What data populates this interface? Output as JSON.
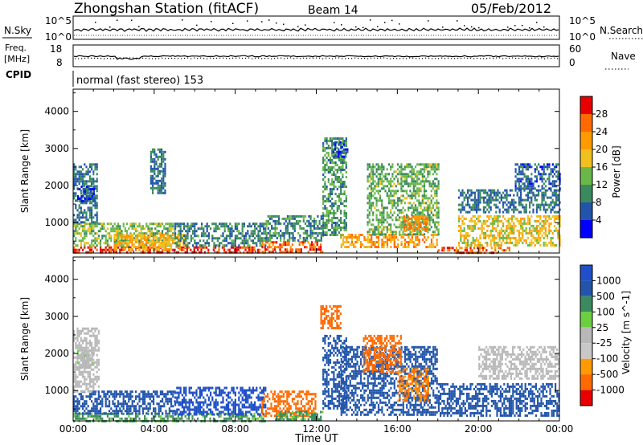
{
  "header": {
    "title": "Zhongshan Station (fitACF)",
    "beam": "Beam 14",
    "date": "05/Feb/2012"
  },
  "noise_panel": {
    "left_label": "N.Sky",
    "right_label": "N.Search",
    "left_ticks": [
      "10^5",
      "10^0"
    ],
    "right_ticks": [
      "10^5",
      "10^0"
    ]
  },
  "freq_panel": {
    "left_label_1": "Freq.",
    "left_label_2": "[MHz]",
    "right_label": "Nave",
    "left_ticks": [
      "18",
      "8"
    ],
    "right_ticks": [
      "60",
      "0"
    ]
  },
  "cpid": {
    "label": "CPID",
    "text": "normal (fast stereo) 153"
  },
  "x_axis": {
    "label": "Time UT",
    "ticks": [
      "00:00",
      "04:00",
      "08:00",
      "12:00",
      "16:00",
      "20:00",
      "00:00"
    ]
  },
  "colors": {
    "power": [
      "#0000ff",
      "#2255aa",
      "#3a8a5e",
      "#6ab84a",
      "#f0c020",
      "#ff9a00",
      "#ff6a00",
      "#e80000"
    ],
    "velocity": [
      "#e80000",
      "#ff6a00",
      "#ff9a00",
      "#c8c8c8",
      "#b8b8b8",
      "#6ad040",
      "#3a8a5e",
      "#2255aa",
      "#2050c8"
    ]
  },
  "chart_data": [
    {
      "type": "heatmap",
      "title": "",
      "ylabel": "Slant Range [km]",
      "xlabel": "",
      "x_range_hours": [
        0,
        24
      ],
      "ylim": [
        180,
        4600
      ],
      "yticks": [
        1000,
        2000,
        3000,
        4000
      ],
      "colorbar": {
        "label": "Power [dB]",
        "ticks": [
          4,
          8,
          12,
          16,
          20,
          24,
          28
        ],
        "range": [
          0,
          32
        ]
      },
      "regions": [
        {
          "t": [
            0.0,
            9.5
          ],
          "r": [
            200,
            360
          ],
          "v": 29
        },
        {
          "t": [
            0.0,
            5.0
          ],
          "r": [
            360,
            1000
          ],
          "v": 14
        },
        {
          "t": [
            0.0,
            1.2
          ],
          "r": [
            1000,
            2600
          ],
          "v": 8
        },
        {
          "t": [
            0.2,
            1.0
          ],
          "r": [
            1600,
            2000
          ],
          "v": 6
        },
        {
          "t": [
            2.0,
            5.5
          ],
          "r": [
            300,
            700
          ],
          "v": 20
        },
        {
          "t": [
            3.8,
            4.5
          ],
          "r": [
            1800,
            3000
          ],
          "v": 8
        },
        {
          "t": [
            5.0,
            9.5
          ],
          "r": [
            350,
            1000
          ],
          "v": 9
        },
        {
          "t": [
            9.3,
            12.3
          ],
          "r": [
            220,
            500
          ],
          "v": 27
        },
        {
          "t": [
            9.5,
            12.3
          ],
          "r": [
            500,
            1200
          ],
          "v": 10
        },
        {
          "t": [
            12.3,
            13.5
          ],
          "r": [
            600,
            3300
          ],
          "v": 11
        },
        {
          "t": [
            12.8,
            13.5
          ],
          "r": [
            2800,
            3200
          ],
          "v": 5
        },
        {
          "t": [
            13.2,
            18.0
          ],
          "r": [
            350,
            700
          ],
          "v": 22
        },
        {
          "t": [
            14.5,
            18.0
          ],
          "r": [
            700,
            2600
          ],
          "v": 13
        },
        {
          "t": [
            16.3,
            17.5
          ],
          "r": [
            800,
            1200
          ],
          "v": 24
        },
        {
          "t": [
            18.0,
            21.5
          ],
          "r": [
            200,
            350
          ],
          "v": 26
        },
        {
          "t": [
            19.0,
            24.0
          ],
          "r": [
            400,
            1200
          ],
          "v": 18
        },
        {
          "t": [
            19.0,
            24.0
          ],
          "r": [
            1300,
            1900
          ],
          "v": 8
        },
        {
          "t": [
            21.8,
            24.0
          ],
          "r": [
            1900,
            2600
          ],
          "v": 7
        }
      ]
    },
    {
      "type": "heatmap",
      "title": "",
      "ylabel": "Slant Range [km]",
      "xlabel": "Time UT",
      "x_range_hours": [
        0,
        24
      ],
      "ylim": [
        180,
        4600
      ],
      "yticks": [
        1000,
        2000,
        3000,
        4000
      ],
      "colorbar": {
        "label": "Velocity [m s^-1]",
        "ticks": [
          1000,
          500,
          100,
          25,
          -25,
          -100,
          -500,
          -1000
        ]
      },
      "regions": [
        {
          "t": [
            0.0,
            9.5
          ],
          "r": [
            200,
            400
          ],
          "v": 60
        },
        {
          "t": [
            0.0,
            5.0
          ],
          "r": [
            400,
            1000
          ],
          "v": 300
        },
        {
          "t": [
            0.0,
            1.3
          ],
          "r": [
            1000,
            2700
          ],
          "v": 0
        },
        {
          "t": [
            0.2,
            1.0
          ],
          "r": [
            1600,
            2100
          ],
          "v": 10
        },
        {
          "t": [
            5.0,
            9.5
          ],
          "r": [
            350,
            1100
          ],
          "v": 700
        },
        {
          "t": [
            9.3,
            12.0
          ],
          "r": [
            300,
            1000
          ],
          "v": -300
        },
        {
          "t": [
            10.0,
            12.3
          ],
          "r": [
            200,
            450
          ],
          "v": 60
        },
        {
          "t": [
            12.2,
            13.2
          ],
          "r": [
            2700,
            3300
          ],
          "v": -300
        },
        {
          "t": [
            12.3,
            13.5
          ],
          "r": [
            500,
            2500
          ],
          "v": 150
        },
        {
          "t": [
            13.2,
            18.0
          ],
          "r": [
            350,
            2200
          ],
          "v": 200
        },
        {
          "t": [
            14.3,
            16.2
          ],
          "r": [
            1500,
            2500
          ],
          "v": -300
        },
        {
          "t": [
            16.0,
            17.5
          ],
          "r": [
            700,
            1600
          ],
          "v": -100
        },
        {
          "t": [
            18.0,
            24.0
          ],
          "r": [
            300,
            1200
          ],
          "v": 200
        },
        {
          "t": [
            20.0,
            24.0
          ],
          "r": [
            1300,
            2200
          ],
          "v": 0
        }
      ]
    }
  ]
}
